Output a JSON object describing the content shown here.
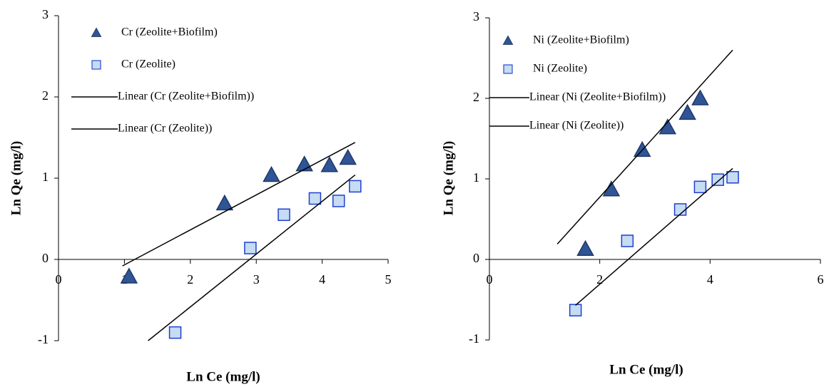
{
  "chart_data": [
    {
      "type": "scatter",
      "x_label": "Ln Ce (mg/l)",
      "y_label": "Ln Qe (mg/l)",
      "xlim": [
        0,
        5
      ],
      "ylim": [
        -1,
        3
      ],
      "xticks": [
        0,
        1,
        2,
        3,
        4,
        5
      ],
      "yticks": [
        -1,
        0,
        1,
        2,
        3
      ],
      "series": [
        {
          "name": "Cr (Zeolite+Biofilm)",
          "type": "scatter",
          "marker": "triangle",
          "color": "#2f5597",
          "x": [
            1.07,
            2.52,
            3.23,
            3.73,
            4.11,
            4.39
          ],
          "values": [
            -0.21,
            0.69,
            1.04,
            1.17,
            1.16,
            1.25
          ]
        },
        {
          "name": "Cr (Zeolite)",
          "type": "scatter",
          "marker": "square",
          "color": "#c5dcf3",
          "x": [
            1.77,
            2.91,
            3.42,
            3.89,
            4.25,
            4.5
          ],
          "values": [
            -0.9,
            0.14,
            0.55,
            0.75,
            0.72,
            0.9
          ]
        },
        {
          "name": "Linear (Cr (Zeolite+Biofilm))",
          "type": "line",
          "color": "#000000",
          "x": [
            0.97,
            4.5
          ],
          "values": [
            -0.08,
            1.44
          ]
        },
        {
          "name": "Linear (Cr (Zeolite))",
          "type": "line",
          "color": "#000000",
          "x": [
            1.36,
            4.5
          ],
          "values": [
            -1,
            1.04
          ]
        }
      ]
    },
    {
      "type": "scatter",
      "x_label": "Ln Ce (mg/l)",
      "y_label": "Ln Qe (mg/l)",
      "xlim": [
        0,
        6
      ],
      "ylim": [
        -1,
        3
      ],
      "xticks": [
        0,
        2,
        4,
        6
      ],
      "yticks": [
        -1,
        0,
        1,
        2,
        3
      ],
      "series": [
        {
          "name": "Ni (Zeolite+Biofilm)",
          "type": "scatter",
          "marker": "triangle",
          "color": "#2f5597",
          "x": [
            1.74,
            2.21,
            2.77,
            3.23,
            3.59,
            3.82
          ],
          "values": [
            0.13,
            0.87,
            1.36,
            1.64,
            1.82,
            2.0
          ]
        },
        {
          "name": "Ni (Zeolite)",
          "type": "scatter",
          "marker": "square",
          "color": "#c5dcf3",
          "x": [
            1.56,
            2.5,
            3.46,
            3.82,
            4.14,
            4.41
          ],
          "values": [
            -0.63,
            0.23,
            0.62,
            0.9,
            0.99,
            1.02
          ]
        },
        {
          "name": "Linear (Ni (Zeolite+Biofilm))",
          "type": "line",
          "color": "#000000",
          "x": [
            1.23,
            4.41
          ],
          "values": [
            0.19,
            2.6
          ]
        },
        {
          "name": "Linear (Ni (Zeolite))",
          "type": "line",
          "color": "#000000",
          "x": [
            1.56,
            4.41
          ],
          "values": [
            -0.57,
            1.13
          ]
        }
      ]
    }
  ]
}
